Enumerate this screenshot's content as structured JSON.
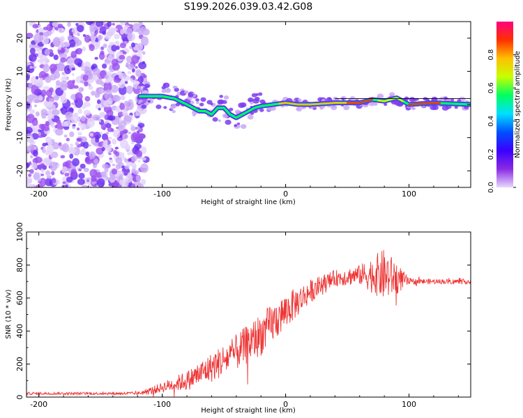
{
  "title": "S199.2026.039.03.42.G08",
  "chart_data": [
    {
      "type": "heatmap",
      "name": "spectrogram",
      "xlabel": "Height of straight line (km)",
      "ylabel": "Frequency (Hz)",
      "xlim": [
        -210,
        150
      ],
      "ylim": [
        -25,
        25
      ],
      "xticks": [
        -200,
        -100,
        0,
        100
      ],
      "yticks": [
        -20,
        -10,
        0,
        10,
        20
      ],
      "colorbar": {
        "label": "Normalized spectral amplitude",
        "range": [
          0,
          1
        ],
        "ticks": [
          "0.0",
          "0.2",
          "0.4",
          "0.6",
          "0.8"
        ],
        "colors": [
          "#e8d8ff",
          "#8a2be2",
          "#3a00ff",
          "#0050ff",
          "#00e0ff",
          "#00ff60",
          "#c8ff00",
          "#ffc000",
          "#ff3000",
          "#ff0080"
        ]
      },
      "ridge": {
        "x": [
          -115,
          -100,
          -90,
          -80,
          -75,
          -70,
          -65,
          -60,
          -55,
          -50,
          -45,
          -40,
          -35,
          -30,
          -25,
          -20,
          -10,
          0,
          10,
          20,
          40,
          60,
          70,
          80,
          90,
          100,
          120,
          150
        ],
        "freq": [
          2.5,
          2.5,
          1.8,
          0,
          -1,
          -2,
          -2,
          -3,
          -1,
          -1,
          -3,
          -4,
          -3,
          -2,
          -1,
          -0.5,
          0,
          0.5,
          0,
          0,
          0.5,
          0.5,
          1.5,
          1,
          2,
          0,
          0.5,
          0
        ]
      }
    },
    {
      "type": "line",
      "name": "snr",
      "xlabel": "Height of straight line (km)",
      "ylabel": "SNR (10 * v/v)",
      "xlim": [
        -210,
        150
      ],
      "ylim": [
        0,
        1000
      ],
      "xticks": [
        -200,
        -100,
        0,
        100
      ],
      "yticks": [
        0,
        200,
        400,
        600,
        800,
        1000
      ],
      "color": "#ee3333",
      "envelope": {
        "x": [
          -210,
          -150,
          -120,
          -108,
          -100,
          -80,
          -60,
          -40,
          -20,
          0,
          20,
          40,
          60,
          80,
          90,
          100,
          120,
          150
        ],
        "mean": [
          22,
          22,
          22,
          40,
          60,
          100,
          180,
          270,
          380,
          520,
          640,
          720,
          740,
          740,
          720,
          700,
          700,
          700
        ],
        "noise": [
          8,
          8,
          10,
          25,
          30,
          60,
          90,
          110,
          130,
          110,
          70,
          50,
          60,
          160,
          100,
          20,
          15,
          15
        ]
      }
    }
  ]
}
